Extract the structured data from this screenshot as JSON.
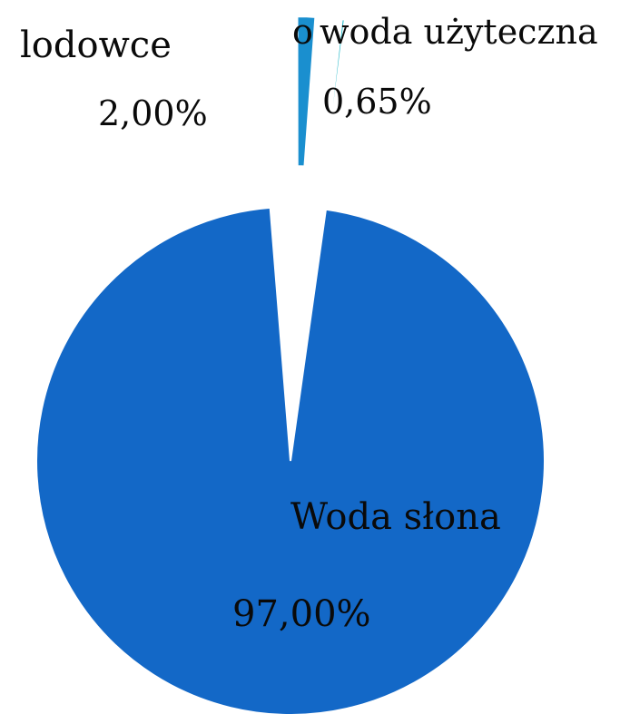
{
  "chart_data": {
    "type": "pie",
    "exploded": true,
    "slices": [
      {
        "name": "Woda słona",
        "value": 97.0,
        "value_label": "97,00%",
        "color": "#1368c7"
      },
      {
        "name": "lodowce",
        "value": 2.0,
        "value_label": "2,00%",
        "color": "#1a8fcf"
      },
      {
        "name": "woda użyteczna",
        "value": 0.65,
        "value_label": "0,65%",
        "color": "#22b8c8"
      }
    ],
    "legend": "none"
  },
  "small_marker": "o"
}
